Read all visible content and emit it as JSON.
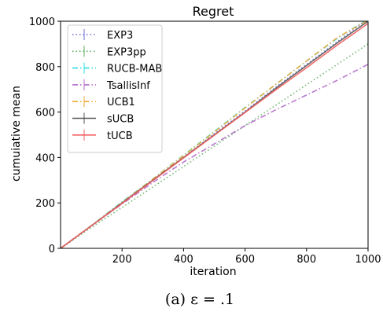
{
  "chart_data": {
    "type": "line",
    "title": "Regret",
    "xlabel": "iteration",
    "ylabel": "cumuiative mean",
    "xlim": [
      0,
      1000
    ],
    "ylim": [
      0,
      1000
    ],
    "xticks": [
      200,
      400,
      600,
      800,
      1000
    ],
    "yticks": [
      0,
      200,
      400,
      600,
      800,
      1000
    ],
    "grid": false,
    "legend_position": "top-left",
    "series": [
      {
        "name": "EXP3",
        "color": "#6b6bd6",
        "dash": "dotted",
        "x": [
          0,
          100,
          200,
          300,
          400,
          500,
          600,
          700,
          800,
          900,
          1000
        ],
        "y": [
          0,
          98,
          198,
          300,
          400,
          505,
          605,
          710,
          810,
          910,
          1010
        ]
      },
      {
        "name": "EXP3pp",
        "color": "#5fae5f",
        "dash": "dotted",
        "x": [
          0,
          100,
          200,
          300,
          400,
          500,
          600,
          700,
          800,
          900,
          1000
        ],
        "y": [
          0,
          92,
          180,
          270,
          360,
          450,
          540,
          630,
          720,
          810,
          900
        ]
      },
      {
        "name": "RUCB-MAB",
        "color": "#33dde0",
        "dash": "dashdot",
        "x": [
          0,
          100,
          200,
          300,
          400,
          500,
          600,
          700,
          800,
          900,
          1000
        ],
        "y": [
          0,
          100,
          205,
          305,
          410,
          515,
          620,
          722,
          825,
          925,
          1010
        ]
      },
      {
        "name": "TsallisInf",
        "color": "#b26cc9",
        "dash": "dashdot",
        "x": [
          0,
          100,
          200,
          300,
          400,
          500,
          600,
          700,
          800,
          900,
          1000
        ],
        "y": [
          0,
          100,
          195,
          290,
          380,
          460,
          540,
          610,
          675,
          740,
          810
        ]
      },
      {
        "name": "UCB1",
        "color": "#f2a935",
        "dash": "dashdot",
        "x": [
          0,
          100,
          200,
          300,
          400,
          500,
          600,
          700,
          800,
          900,
          1000
        ],
        "y": [
          0,
          100,
          202,
          305,
          408,
          512,
          618,
          722,
          825,
          928,
          1005
        ]
      },
      {
        "name": "sUCB",
        "color": "#555555",
        "dash": "solid",
        "x": [
          0,
          100,
          200,
          300,
          400,
          500,
          600,
          700,
          800,
          900,
          1000
        ],
        "y": [
          0,
          99,
          200,
          300,
          400,
          500,
          600,
          705,
          805,
          905,
          1000
        ]
      },
      {
        "name": "tUCB",
        "color": "#f25f5f",
        "dash": "solid",
        "x": [
          0,
          100,
          200,
          300,
          400,
          500,
          600,
          700,
          800,
          900,
          1000
        ],
        "y": [
          0,
          99,
          198,
          298,
          398,
          498,
          598,
          698,
          795,
          895,
          990
        ]
      }
    ]
  },
  "caption": "(a) ε = .1"
}
